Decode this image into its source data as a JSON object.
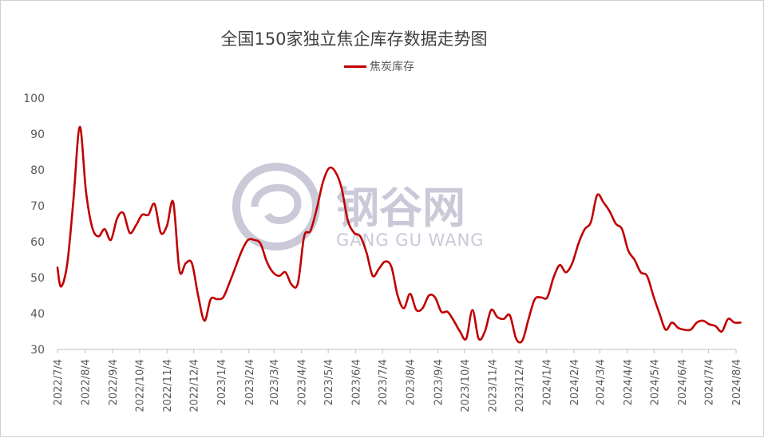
{
  "chart_data": {
    "type": "line",
    "title": "全国150家独立焦企库存数据走势图",
    "xlabel": "",
    "ylabel": "",
    "ylim": [
      30,
      100
    ],
    "yticks": [
      "30",
      "40",
      "50",
      "60",
      "70",
      "80",
      "90",
      "100"
    ],
    "xticks": [
      "2022/7/4",
      "2022/8/4",
      "2022/9/4",
      "2022/10/4",
      "2022/11/4",
      "2022/12/4",
      "2023/1/4",
      "2023/2/4",
      "2023/3/4",
      "2023/4/4",
      "2023/5/4",
      "2023/6/4",
      "2023/7/4",
      "2023/8/4",
      "2023/9/4",
      "2023/10/4",
      "2023/11/4",
      "2023/12/4",
      "2024/1/4",
      "2024/2/4",
      "2024/3/4",
      "2024/4/4",
      "2024/5/4",
      "2024/6/4",
      "2024/7/4",
      "2024/8/4"
    ],
    "grid": false,
    "legend_position": "top-center",
    "series": [
      {
        "name": "焦炭库存",
        "color": "#c00000",
        "x": [
          "2022/7/4",
          "2022/7/8",
          "2022/7/15",
          "2022/7/22",
          "2022/7/29",
          "2022/8/5",
          "2022/8/12",
          "2022/8/19",
          "2022/8/26",
          "2022/9/2",
          "2022/9/9",
          "2022/9/16",
          "2022/9/23",
          "2022/9/30",
          "2022/10/7",
          "2022/10/14",
          "2022/10/21",
          "2022/10/28",
          "2022/11/4",
          "2022/11/11",
          "2022/11/18",
          "2022/11/25",
          "2022/12/2",
          "2022/12/9",
          "2022/12/16",
          "2022/12/23",
          "2022/12/30",
          "2023/1/6",
          "2023/1/13",
          "2023/1/20",
          "2023/1/27",
          "2023/2/3",
          "2023/2/10",
          "2023/2/17",
          "2023/2/24",
          "2023/3/3",
          "2023/3/10",
          "2023/3/17",
          "2023/3/24",
          "2023/3/31",
          "2023/4/7",
          "2023/4/14",
          "2023/4/21",
          "2023/4/28",
          "2023/5/5",
          "2023/5/12",
          "2023/5/19",
          "2023/5/26",
          "2023/6/2",
          "2023/6/9",
          "2023/6/16",
          "2023/6/23",
          "2023/6/30",
          "2023/7/7",
          "2023/7/14",
          "2023/7/21",
          "2023/7/28",
          "2023/8/4",
          "2023/8/11",
          "2023/8/18",
          "2023/8/25",
          "2023/9/1",
          "2023/9/8",
          "2023/9/15",
          "2023/9/22",
          "2023/9/29",
          "2023/10/6",
          "2023/10/13",
          "2023/10/20",
          "2023/10/27",
          "2023/11/3",
          "2023/11/10",
          "2023/11/17",
          "2023/11/24",
          "2023/12/1",
          "2023/12/8",
          "2023/12/15",
          "2023/12/22",
          "2023/12/29",
          "2024/1/5",
          "2024/1/12",
          "2024/1/19",
          "2024/1/26",
          "2024/2/2",
          "2024/2/9",
          "2024/2/16",
          "2024/2/23",
          "2024/3/1",
          "2024/3/8",
          "2024/3/15",
          "2024/3/22",
          "2024/3/29",
          "2024/4/5",
          "2024/4/12",
          "2024/4/19",
          "2024/4/26",
          "2024/5/3",
          "2024/5/10",
          "2024/5/17",
          "2024/5/24",
          "2024/5/31",
          "2024/6/7",
          "2024/6/14",
          "2024/6/21",
          "2024/6/28",
          "2024/7/5",
          "2024/7/12",
          "2024/7/19",
          "2024/7/26",
          "2024/8/2",
          "2024/8/9"
        ],
        "values": [
          52.8,
          47.5,
          54.0,
          72.0,
          92.0,
          74.0,
          64.0,
          61.5,
          63.5,
          60.5,
          66.5,
          68.0,
          62.5,
          64.5,
          67.5,
          67.5,
          70.5,
          62.5,
          64.5,
          71.0,
          52.0,
          54.0,
          54.0,
          45.0,
          38.0,
          44.0,
          44.0,
          44.5,
          48.5,
          53.0,
          57.5,
          60.5,
          60.5,
          59.5,
          54.5,
          51.5,
          50.5,
          51.5,
          48.0,
          48.5,
          61.5,
          63.0,
          69.0,
          76.5,
          80.5,
          79.5,
          75.0,
          66.0,
          62.5,
          61.5,
          57.0,
          50.5,
          52.5,
          54.5,
          53.0,
          45.0,
          41.5,
          45.5,
          41.0,
          41.5,
          45.0,
          44.5,
          40.5,
          40.5,
          38.0,
          35.0,
          33.0,
          41.0,
          33.0,
          35.0,
          41.0,
          39.0,
          38.5,
          39.5,
          33.0,
          32.5,
          38.5,
          44.0,
          44.5,
          44.5,
          50.0,
          53.5,
          51.5,
          54.0,
          59.5,
          63.5,
          65.5,
          73.0,
          71.0,
          68.5,
          65.0,
          63.5,
          57.5,
          55.0,
          51.5,
          50.5,
          45.0,
          40.0,
          35.5,
          37.5,
          36.0,
          35.5,
          35.5,
          37.5,
          38.0,
          37.0,
          36.5,
          35.0,
          38.5,
          37.5,
          37.5
        ]
      }
    ]
  },
  "watermark": {
    "cn": "钢谷网",
    "en": "GANG GU WANG",
    "color": "#c9c9d8"
  }
}
